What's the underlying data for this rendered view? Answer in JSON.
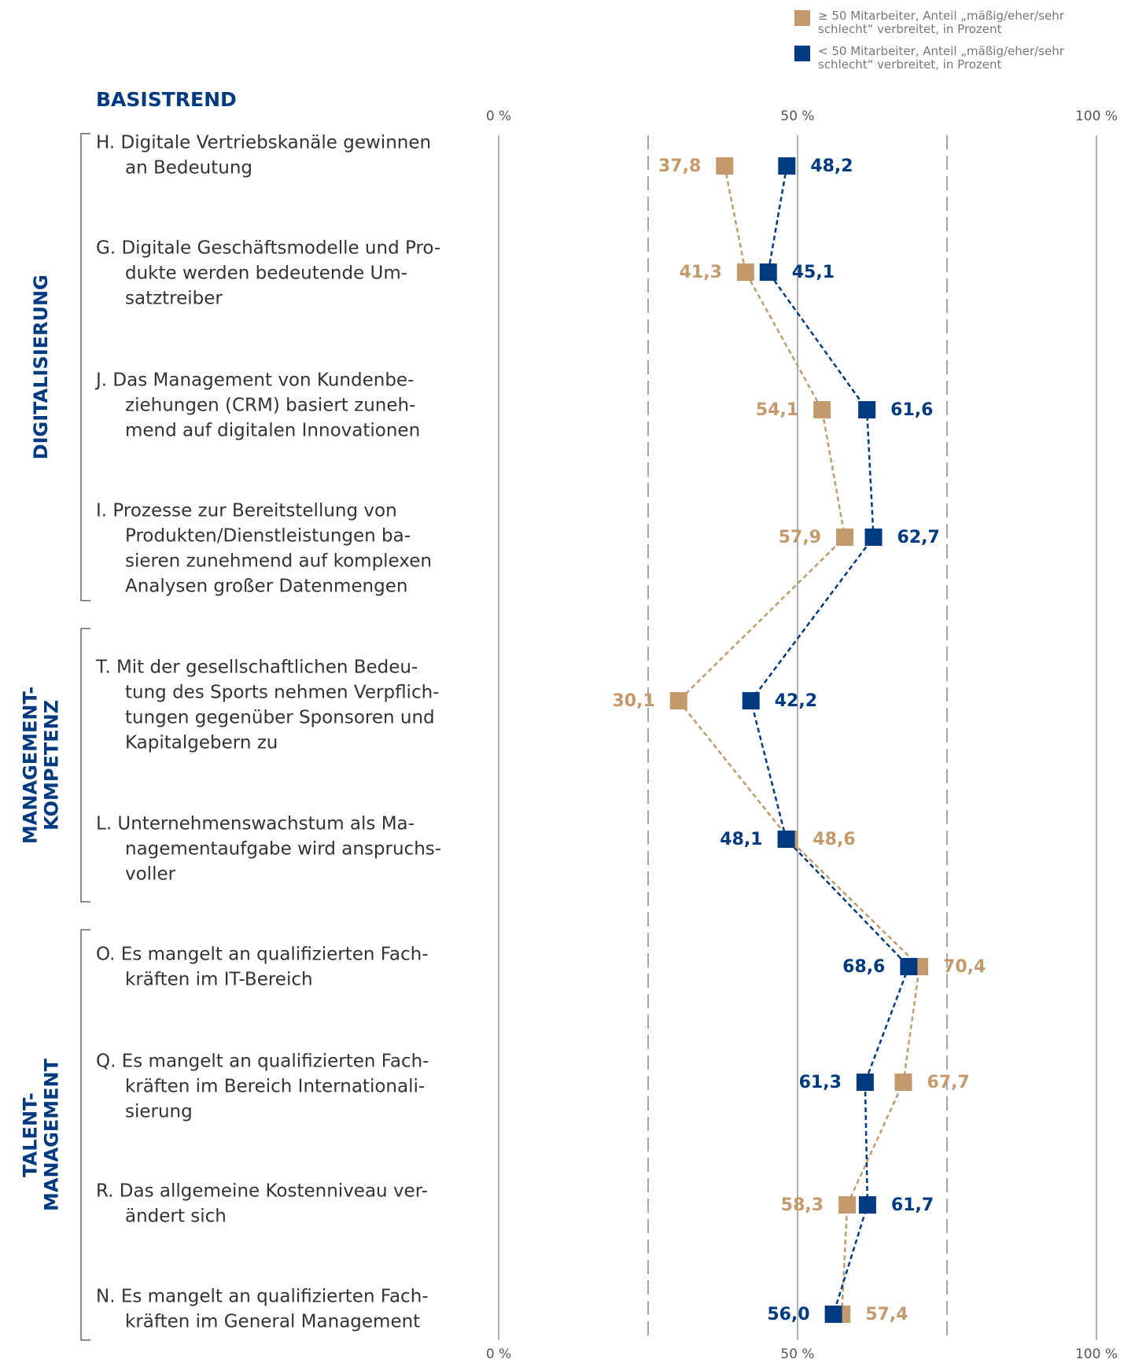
{
  "chart_data": {
    "type": "dot",
    "title": "BASISTREND",
    "groups": [
      {
        "lines": [
          "DIGITALISIERUNG"
        ],
        "rows": [
          0,
          3
        ]
      },
      {
        "lines": [
          "MANAGEMENT-",
          "KOMPETENZ"
        ],
        "rows": [
          4,
          5
        ]
      },
      {
        "lines": [
          "TALENT-",
          "MANAGEMENT"
        ],
        "rows": [
          6,
          9
        ]
      }
    ],
    "categories": [
      [
        "H. Digitale Vertriebskanäle gewinnen",
        "an Bedeutung"
      ],
      [
        "G. Digitale Geschäftsmodelle und Pro-",
        "dukte werden bedeutende Um-",
        "satztreiber"
      ],
      [
        "J.  Das Management von Kundenbe-",
        "ziehungen (CRM) basiert zuneh-",
        "mend auf digitalen Innovationen"
      ],
      [
        "I.   Prozesse zur Bereitstellung von",
        "Produkten/Dienstleistungen ba-",
        "sieren zunehmend auf komplexen",
        "Analysen großer Datenmengen"
      ],
      [
        "T.  Mit der gesellschaftlichen Bedeu-",
        "tung des Sports nehmen Verpflich-",
        "tungen gegenüber Sponsoren und",
        "Kapitalgebern zu"
      ],
      [
        "L.  Unternehmenswachstum als Ma-",
        "nagementaufgabe wird anspruchs-",
        "voller"
      ],
      [
        "O. Es mangelt an qualifizierten Fach-",
        "kräften im IT-Bereich"
      ],
      [
        "Q. Es mangelt an qualifizierten Fach-",
        "kräften im Bereich Internationali-",
        "sierung"
      ],
      [
        "R.  Das allgemeine Kostenniveau ver-",
        "ändert sich"
      ],
      [
        "N. Es mangelt an qualifizierten Fach-",
        "kräften im General Management"
      ]
    ],
    "series": [
      {
        "name": "≥ 50 Mitarbeiter, Anteil „mäßig/eher/sehr schlecht“ verbreitet, in Prozent",
        "color": "#c49a6c",
        "values": [
          37.8,
          41.3,
          54.1,
          57.9,
          30.1,
          48.6,
          70.4,
          67.7,
          58.3,
          57.4
        ],
        "value_labels": [
          "37,8",
          "41,3",
          "54,1",
          "57,9",
          "30,1",
          "48,6",
          "70,4",
          "67,7",
          "58,3",
          "57,4"
        ]
      },
      {
        "name": "< 50 Mitarbeiter, Anteil „mäßig/eher/sehr schlecht“ verbreitet, in Prozent",
        "color": "#003a80",
        "values": [
          48.2,
          45.1,
          61.6,
          62.7,
          42.2,
          48.1,
          68.6,
          61.3,
          61.7,
          56.0
        ],
        "value_labels": [
          "48,2",
          "45,1",
          "61,6",
          "62,7",
          "42,2",
          "48,1",
          "68,6",
          "61,3",
          "61,7",
          "56,0"
        ]
      }
    ],
    "xlim": [
      0,
      100
    ],
    "xticks": [
      {
        "value": 0,
        "label": "0 %"
      },
      {
        "value": 50,
        "label": "50 %"
      },
      {
        "value": 100,
        "label": "100 %"
      }
    ],
    "minor_xticks": [
      25,
      75
    ]
  }
}
